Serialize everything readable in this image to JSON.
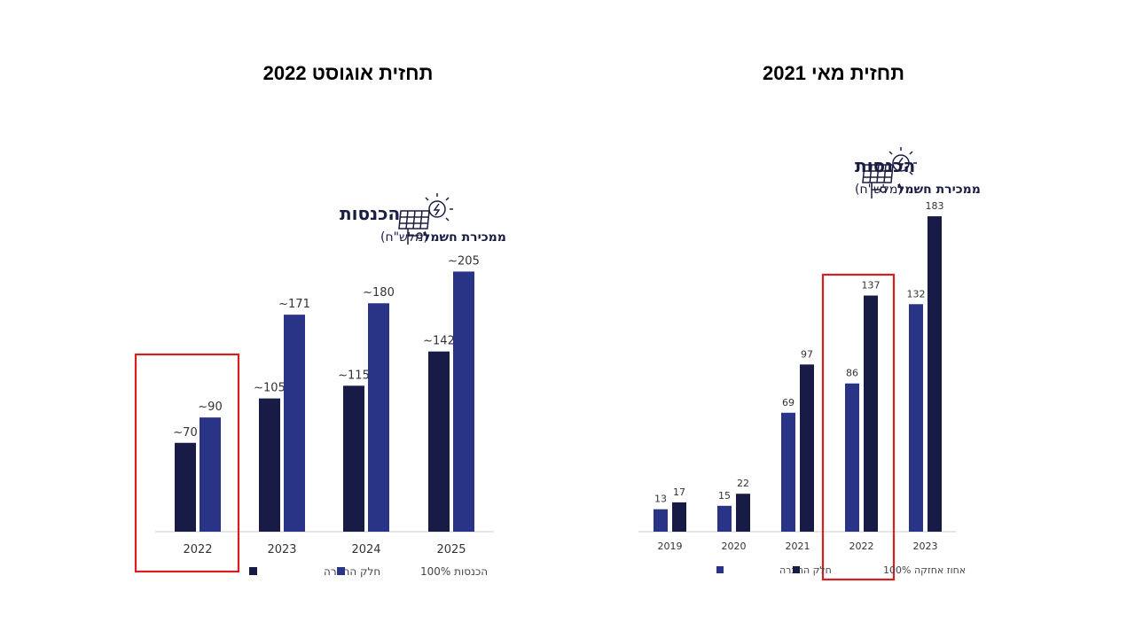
{
  "slide": {
    "title_left": "תחזית אוגוסט 2022",
    "title_right": "תחזית מאי 2021"
  },
  "chart_data": [
    {
      "type": "bar",
      "title": "הכנסות",
      "subtitle": "ממכירת חשמל",
      "subtitle_unit": "(מלש\"ח)",
      "categories": [
        "2022",
        "2023",
        "2024",
        "2025"
      ],
      "series": [
        {
          "name": "חלק החברה",
          "color": "#171b45",
          "values": [
            70,
            105,
            115,
            142
          ],
          "labels": [
            "~70",
            "~105",
            "~115",
            "~142"
          ]
        },
        {
          "name": "הכנסות 100%",
          "color": "#2a3487",
          "values": [
            90,
            171,
            180,
            205
          ],
          "labels": [
            "~90",
            "~171",
            "~180",
            "~205"
          ]
        }
      ],
      "highlight_category": "2022",
      "highlight_color": "#d42020",
      "icon": "solar-panel-icon"
    },
    {
      "type": "bar",
      "title": "הכנסות",
      "subtitle": "ממכירת חשמל",
      "subtitle_unit": "(מלש\"ח)",
      "categories": [
        "2019",
        "2020",
        "2021",
        "2022",
        "2023"
      ],
      "series": [
        {
          "name": "חלק החברה",
          "color": "#2a3487",
          "values": [
            13,
            15,
            69,
            86,
            132
          ],
          "labels": [
            "13",
            "15",
            "69",
            "86",
            "132"
          ]
        },
        {
          "name": "אחוז אחזקה 100%",
          "color": "#171b45",
          "values": [
            17,
            22,
            97,
            137,
            183
          ],
          "labels": [
            "17",
            "22",
            "97",
            "137",
            "183"
          ]
        }
      ],
      "highlight_category": "2022",
      "highlight_color": "#d42020",
      "icon": "solar-panel-icon"
    }
  ]
}
